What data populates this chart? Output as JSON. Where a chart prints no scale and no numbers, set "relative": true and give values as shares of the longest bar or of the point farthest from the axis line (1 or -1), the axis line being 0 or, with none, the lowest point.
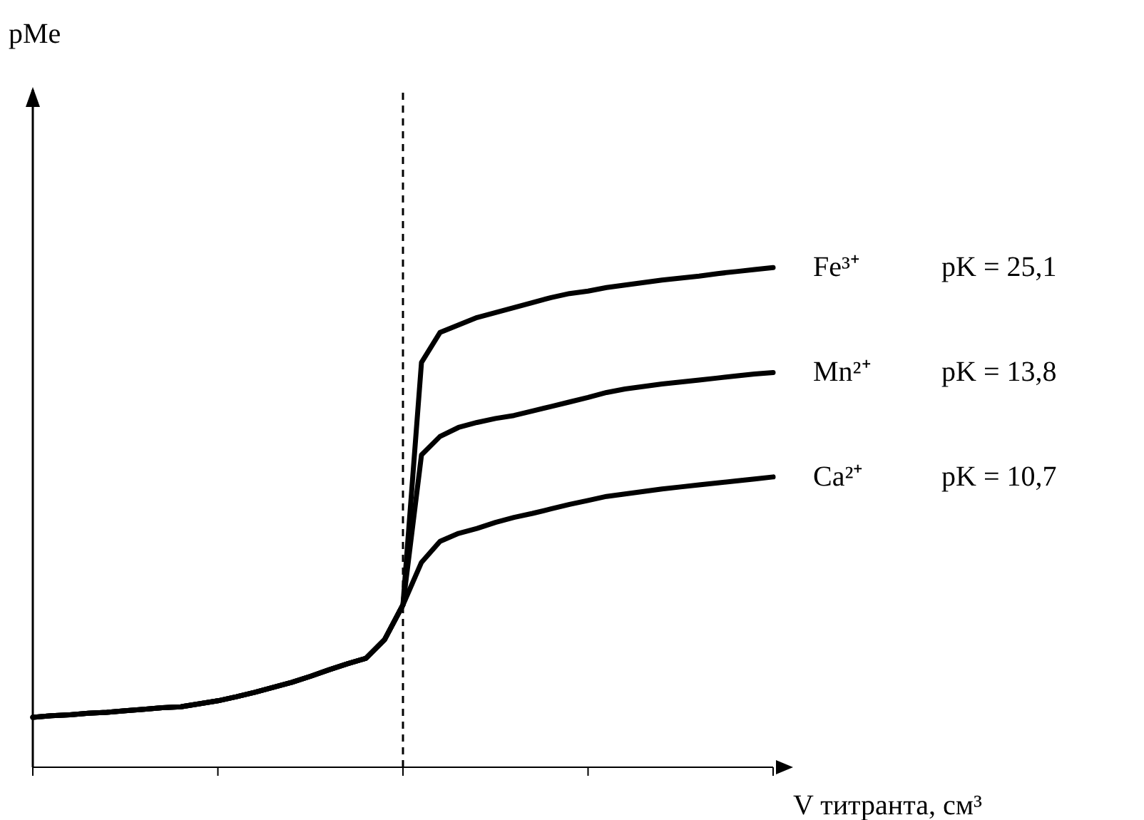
{
  "chart_data": {
    "type": "line",
    "relative": true,
    "xlabel": "V титранта, см³",
    "categories": [
      null,
      null,
      null,
      null,
      null,
      null,
      null,
      null,
      null,
      null,
      null,
      null,
      null,
      null,
      null,
      null,
      null,
      null,
      null,
      null,
      null,
      null,
      null,
      null,
      null,
      null,
      null,
      null,
      null,
      null,
      null,
      null,
      null,
      null,
      null,
      null,
      null,
      null,
      null,
      null,
      null
    ],
    "marker": "none",
    "line_style": "solid",
    "series": [
      {
        "name": "Fe³⁺",
        "color": "#000000",
        "values": [
          0.1,
          0.103,
          0.105,
          0.108,
          0.11,
          0.113,
          0.116,
          0.119,
          0.121,
          0.127,
          0.133,
          0.141,
          0.15,
          0.16,
          0.17,
          0.182,
          0.195,
          0.207,
          0.218,
          0.255,
          0.325,
          0.81,
          0.87,
          0.885,
          0.9,
          0.91,
          0.92,
          0.93,
          0.94,
          0.948,
          0.953,
          0.96,
          0.965,
          0.97,
          0.975,
          0.979,
          0.983,
          0.988,
          0.992,
          0.996,
          1.0
        ]
      },
      {
        "name": "Mn²⁺",
        "color": "#000000",
        "values": [
          0.1,
          0.103,
          0.105,
          0.108,
          0.11,
          0.113,
          0.116,
          0.119,
          0.121,
          0.127,
          0.133,
          0.141,
          0.15,
          0.16,
          0.17,
          0.182,
          0.195,
          0.207,
          0.218,
          0.255,
          0.325,
          0.625,
          0.662,
          0.68,
          0.69,
          0.698,
          0.704,
          0.713,
          0.722,
          0.731,
          0.74,
          0.75,
          0.757,
          0.762,
          0.767,
          0.771,
          0.775,
          0.779,
          0.783,
          0.787,
          0.79
        ]
      },
      {
        "name": "Ca²⁺",
        "color": "#000000",
        "values": [
          0.1,
          0.103,
          0.105,
          0.108,
          0.11,
          0.113,
          0.116,
          0.119,
          0.121,
          0.127,
          0.133,
          0.141,
          0.15,
          0.16,
          0.17,
          0.182,
          0.195,
          0.207,
          0.218,
          0.255,
          0.325,
          0.41,
          0.452,
          0.468,
          0.478,
          0.49,
          0.5,
          0.508,
          0.517,
          0.526,
          0.534,
          0.542,
          0.547,
          0.552,
          0.557,
          0.561,
          0.565,
          0.569,
          0.573,
          0.577,
          0.581
        ]
      }
    ],
    "annotations": [
      "pMe",
      "pK = 25,1",
      "pK = 13,8",
      "pK = 10,7"
    ]
  }
}
